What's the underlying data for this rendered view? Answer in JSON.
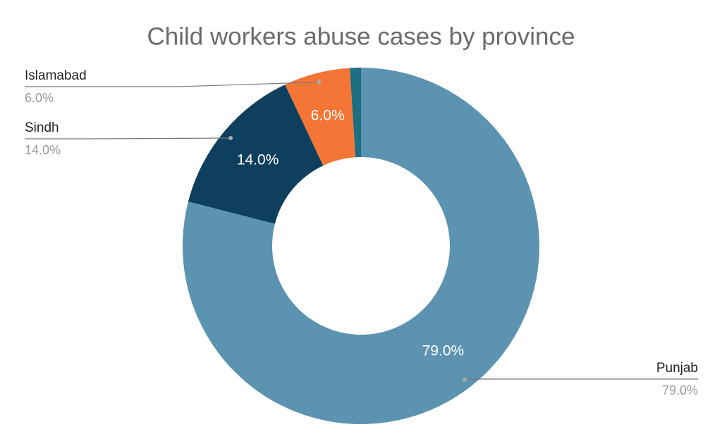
{
  "chart_data": {
    "type": "donut",
    "title": "Child workers abuse cases by province",
    "categories": [
      "Punjab",
      "Sindh",
      "Islamabad",
      null
    ],
    "values": [
      79,
      14,
      6,
      1
    ],
    "value_labels": [
      "79.0%",
      "14.0%",
      "6.0%",
      null
    ],
    "colors": [
      "#5b93b0",
      "#0e3f5c",
      "#f47535",
      "#1d6e80"
    ]
  }
}
